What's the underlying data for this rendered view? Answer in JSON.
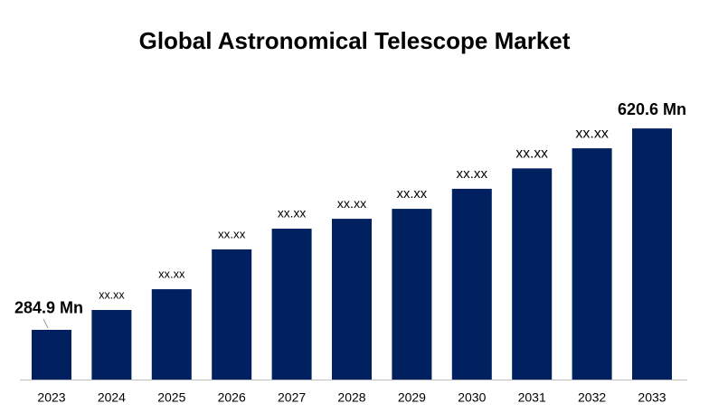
{
  "chart_data": {
    "type": "bar",
    "title": "Global Astronomical Telescope Market",
    "categories": [
      "2023",
      "2024",
      "2025",
      "2026",
      "2027",
      "2028",
      "2029",
      "2030",
      "2031",
      "2032",
      "2033"
    ],
    "values": [
      284.9,
      318,
      352.6,
      419,
      453.5,
      470,
      486.6,
      520,
      554,
      587.5,
      620.6
    ],
    "value_labels": [
      "284.9 Mn",
      "xx.xx",
      "xx.xx",
      "xx.xx",
      "xx.xx",
      "xx.xx",
      "xx.xx",
      "xx.xx",
      "xx.xx",
      "xx.xx",
      "620.6 Mn"
    ],
    "color": "#002060",
    "ylim": [
      202,
      669
    ]
  }
}
